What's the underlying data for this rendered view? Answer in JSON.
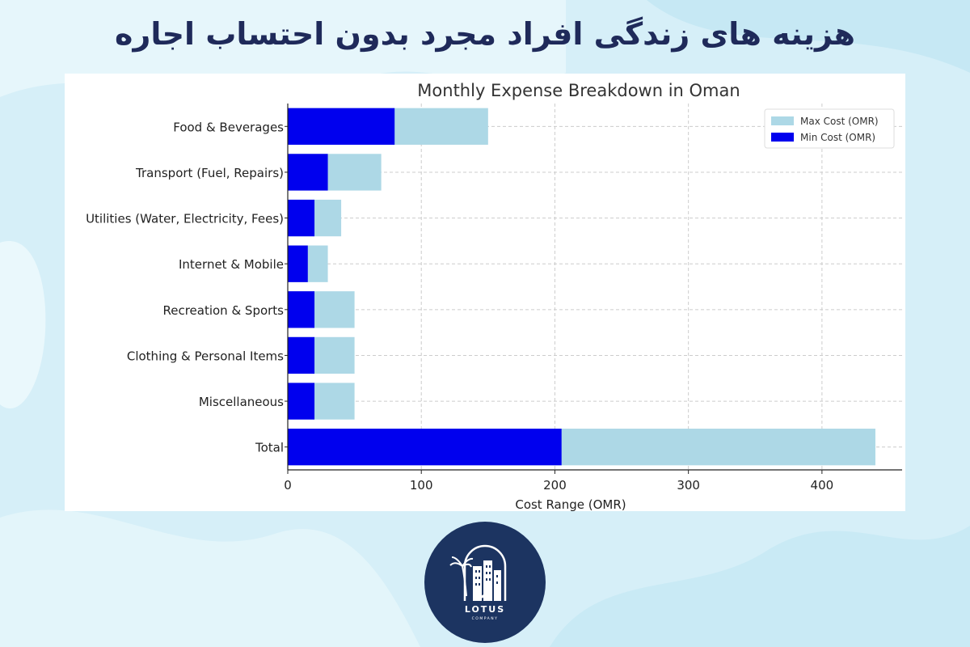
{
  "page": {
    "title": "هزینه های زندگی افراد مجرد بدون احتساب اجاره"
  },
  "logo": {
    "name": "LOTUS",
    "tagline": "COMPANY"
  },
  "colors": {
    "min_bar": "#0000ee",
    "max_bar": "#add8e6",
    "title_text": "#1f2a5a",
    "logo_bg": "#1c3461"
  },
  "chart_data": {
    "type": "bar",
    "orientation": "horizontal",
    "title": "Monthly Expense Breakdown in Oman",
    "xlabel": "Cost Range (OMR)",
    "ylabel": "",
    "xlim": [
      0,
      460
    ],
    "xticks": [
      0,
      100,
      200,
      300,
      400
    ],
    "grid": true,
    "legend_position": "top-right",
    "categories": [
      "Food & Beverages",
      "Transport (Fuel, Repairs)",
      "Utilities (Water, Electricity, Fees)",
      "Internet & Mobile",
      "Recreation & Sports",
      "Clothing & Personal Items",
      "Miscellaneous",
      "Total"
    ],
    "series": [
      {
        "name": "Max Cost (OMR)",
        "color": "#add8e6",
        "values": [
          150,
          70,
          40,
          30,
          50,
          50,
          50,
          440
        ]
      },
      {
        "name": "Min Cost (OMR)",
        "color": "#0000ee",
        "values": [
          80,
          30,
          20,
          15,
          20,
          20,
          20,
          205
        ]
      }
    ]
  }
}
